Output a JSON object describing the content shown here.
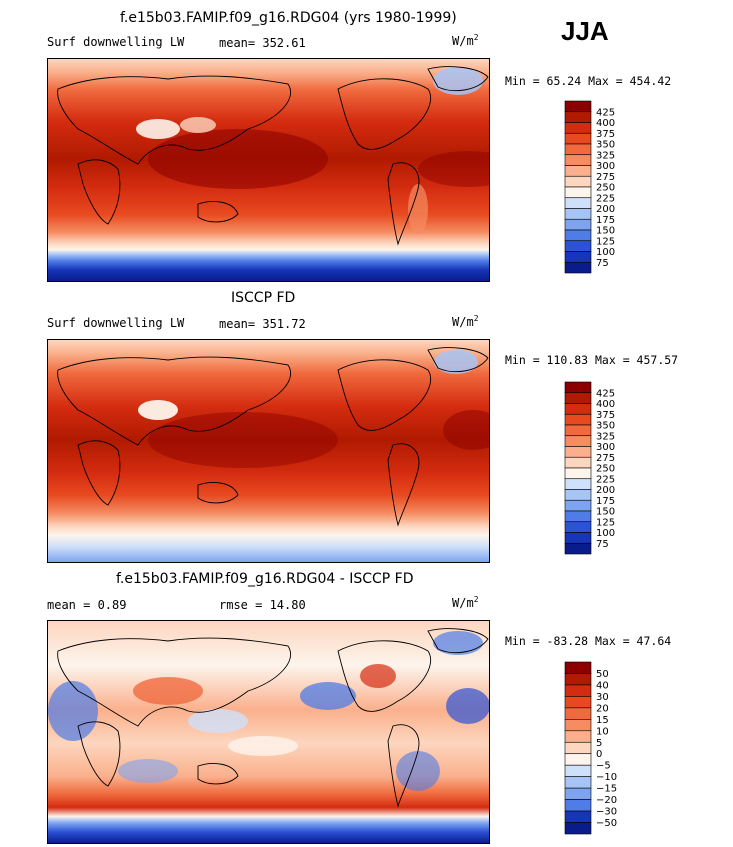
{
  "season": "JJA",
  "panels": [
    {
      "title": "f.e15b03.FAMIP.f09_g16.RDG04 (yrs 1980-1999)",
      "left_label": "Surf downwelling LW",
      "mid_label": "mean= 352.61",
      "unit_base": "W/m",
      "unit_exp": "2",
      "minmax": "Min =  65.24 Max = 454.42",
      "levels": [
        "425",
        "400",
        "375",
        "350",
        "325",
        "300",
        "275",
        "250",
        "225",
        "200",
        "175",
        "150",
        "125",
        "100",
        "75"
      ],
      "colors": [
        "#8c0000",
        "#b01a00",
        "#d42c10",
        "#e84a20",
        "#f06a3e",
        "#f58c62",
        "#fab08c",
        "#fdd6bf",
        "#fdf4ec",
        "#cfe0fa",
        "#a7c4f6",
        "#7ea4f0",
        "#4f7ce6",
        "#2c52d6",
        "#1635b8",
        "#0a1c8c"
      ]
    },
    {
      "title": "ISCCP FD",
      "left_label": "Surf downwelling LW",
      "mid_label": "mean= 351.72",
      "unit_base": "W/m",
      "unit_exp": "2",
      "minmax": "Min = 110.83 Max = 457.57",
      "levels": [
        "425",
        "400",
        "375",
        "350",
        "325",
        "300",
        "275",
        "250",
        "225",
        "200",
        "175",
        "150",
        "125",
        "100",
        "75"
      ],
      "colors": [
        "#8c0000",
        "#b01a00",
        "#d42c10",
        "#e84a20",
        "#f06a3e",
        "#f58c62",
        "#fab08c",
        "#fdd6bf",
        "#fdf4ec",
        "#cfe0fa",
        "#a7c4f6",
        "#7ea4f0",
        "#4f7ce6",
        "#2c52d6",
        "#1635b8",
        "#0a1c8c"
      ]
    },
    {
      "title": "f.e15b03.FAMIP.f09_g16.RDG04 - ISCCP FD",
      "left_label": "mean =   0.89",
      "mid_label": "rmse =  14.80",
      "unit_base": "W/m",
      "unit_exp": "2",
      "minmax": "Min = -83.28 Max =  47.64",
      "levels": [
        "50",
        "40",
        "30",
        "20",
        "15",
        "10",
        "5",
        "0",
        "−5",
        "−10",
        "−15",
        "−20",
        "−30",
        "−50"
      ],
      "colors": [
        "#8c0000",
        "#b01a00",
        "#d42c10",
        "#e84a20",
        "#f06a3e",
        "#f58c62",
        "#fab08c",
        "#fdd6bf",
        "#fdf4ec",
        "#cfe0fa",
        "#a7c4f6",
        "#7ea4f0",
        "#4f7ce6",
        "#1635b8",
        "#0a1c8c"
      ]
    }
  ],
  "chart_data": [
    {
      "type": "heatmap",
      "title": "f.e15b03.FAMIP.f09_g16.RDG04 (yrs 1980-1999)",
      "variable": "Surf downwelling LW",
      "units": "W/m2",
      "mean": 352.61,
      "min": 65.24,
      "max": 454.42,
      "contour_levels": [
        75,
        100,
        125,
        150,
        175,
        200,
        225,
        250,
        275,
        300,
        325,
        350,
        375,
        400,
        425
      ]
    },
    {
      "type": "heatmap",
      "title": "ISCCP FD",
      "variable": "Surf downwelling LW",
      "units": "W/m2",
      "mean": 351.72,
      "min": 110.83,
      "max": 457.57,
      "contour_levels": [
        75,
        100,
        125,
        150,
        175,
        200,
        225,
        250,
        275,
        300,
        325,
        350,
        375,
        400,
        425
      ]
    },
    {
      "type": "heatmap",
      "title": "f.e15b03.FAMIP.f09_g16.RDG04 - ISCCP FD",
      "units": "W/m2",
      "mean": 0.89,
      "rmse": 14.8,
      "min": -83.28,
      "max": 47.64,
      "contour_levels": [
        -50,
        -30,
        -20,
        -15,
        -10,
        -5,
        0,
        5,
        10,
        15,
        20,
        30,
        40,
        50
      ]
    }
  ]
}
